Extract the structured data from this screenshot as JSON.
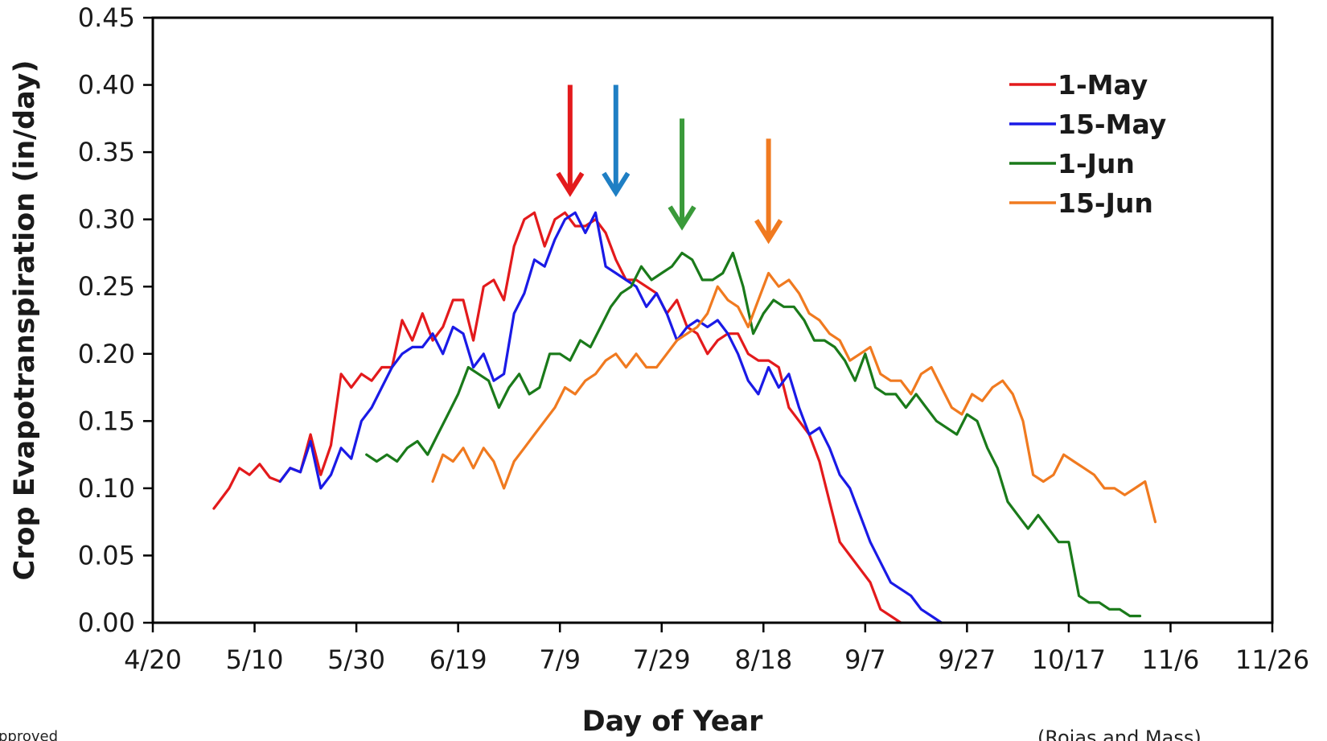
{
  "chart_data": {
    "type": "line",
    "title": "",
    "xlabel": "Day of Year",
    "ylabel": "Crop Evapotranspiration (in/day)",
    "xlim": [
      "4/20",
      "11/26"
    ],
    "ylim": [
      0,
      0.45
    ],
    "x_ticks": [
      "4/20",
      "5/10",
      "5/30",
      "6/19",
      "7/9",
      "7/29",
      "8/18",
      "9/7",
      "9/27",
      "10/17",
      "11/6",
      "11/26"
    ],
    "y_ticks": [
      "0.00",
      "0.05",
      "0.10",
      "0.15",
      "0.20",
      "0.25",
      "0.30",
      "0.35",
      "0.40",
      "0.45"
    ],
    "grid": false,
    "legend_position": "top-right",
    "series": [
      {
        "name": "1-May",
        "color": "#e31a1c",
        "x": [
          "5/2",
          "5/3",
          "5/5",
          "5/7",
          "5/9",
          "5/11",
          "5/13",
          "5/15",
          "5/17",
          "5/19",
          "5/21",
          "5/23",
          "5/25",
          "5/27",
          "5/29",
          "5/31",
          "6/2",
          "6/4",
          "6/6",
          "6/8",
          "6/10",
          "6/12",
          "6/14",
          "6/16",
          "6/18",
          "6/20",
          "6/22",
          "6/24",
          "6/26",
          "6/28",
          "6/30",
          "7/2",
          "7/4",
          "7/6",
          "7/8",
          "7/10",
          "7/12",
          "7/14",
          "7/16",
          "7/18",
          "7/20",
          "7/22",
          "7/24",
          "7/26",
          "7/28",
          "7/30",
          "8/1",
          "8/3",
          "8/5",
          "8/7",
          "8/9",
          "8/11",
          "8/13",
          "8/15",
          "8/17",
          "8/19",
          "8/21",
          "8/23",
          "8/25",
          "8/27",
          "8/29",
          "8/31",
          "9/2",
          "9/4",
          "9/6",
          "9/8",
          "9/10",
          "9/12",
          "9/14",
          "9/16",
          "9/18",
          "9/20",
          "9/22"
        ],
        "y": [
          0.085,
          0.09,
          0.1,
          0.115,
          0.11,
          0.118,
          0.108,
          0.105,
          0.115,
          0.112,
          0.14,
          0.11,
          0.132,
          0.185,
          0.175,
          0.185,
          0.18,
          0.19,
          0.19,
          0.225,
          0.21,
          0.23,
          0.21,
          0.22,
          0.24,
          0.24,
          0.21,
          0.25,
          0.255,
          0.24,
          0.28,
          0.3,
          0.305,
          0.28,
          0.3,
          0.305,
          0.295,
          0.295,
          0.3,
          0.29,
          0.27,
          0.255,
          0.255,
          0.25,
          0.245,
          0.23,
          0.24,
          0.22,
          0.215,
          0.2,
          0.21,
          0.215,
          0.215,
          0.2,
          0.195,
          0.195,
          0.19,
          0.16,
          0.15,
          0.14,
          0.12,
          0.09,
          0.06,
          0.05,
          0.04,
          0.03,
          0.01,
          0.005,
          0.0,
          null,
          null,
          null,
          null
        ]
      },
      {
        "name": "15-May",
        "color": "#1a1ae6",
        "x": [
          "5/15",
          "5/17",
          "5/19",
          "5/21",
          "5/23",
          "5/25",
          "5/27",
          "5/29",
          "5/31",
          "6/2",
          "6/4",
          "6/6",
          "6/8",
          "6/10",
          "6/12",
          "6/14",
          "6/16",
          "6/18",
          "6/20",
          "6/22",
          "6/24",
          "6/26",
          "6/28",
          "6/30",
          "7/2",
          "7/4",
          "7/6",
          "7/8",
          "7/10",
          "7/12",
          "7/14",
          "7/16",
          "7/18",
          "7/20",
          "7/22",
          "7/24",
          "7/26",
          "7/28",
          "7/30",
          "8/1",
          "8/3",
          "8/5",
          "8/7",
          "8/9",
          "8/11",
          "8/13",
          "8/15",
          "8/17",
          "8/19",
          "8/21",
          "8/23",
          "8/25",
          "8/27",
          "8/29",
          "8/31",
          "9/2",
          "9/4",
          "9/6",
          "9/8",
          "9/10",
          "9/12",
          "9/14",
          "9/16",
          "9/18",
          "9/20",
          "9/22",
          "9/24",
          "9/26",
          "9/28",
          "9/30",
          "10/2",
          "10/4",
          "10/6"
        ],
        "y": [
          0.105,
          0.115,
          0.112,
          0.135,
          0.1,
          0.11,
          0.13,
          0.122,
          0.15,
          0.16,
          0.175,
          0.19,
          0.2,
          0.205,
          0.205,
          0.215,
          0.2,
          0.22,
          0.215,
          0.19,
          0.2,
          0.18,
          0.185,
          0.23,
          0.245,
          0.27,
          0.265,
          0.285,
          0.3,
          0.305,
          0.29,
          0.305,
          0.265,
          0.26,
          0.255,
          0.25,
          0.235,
          0.245,
          0.23,
          0.21,
          0.22,
          0.225,
          0.22,
          0.225,
          0.215,
          0.2,
          0.18,
          0.17,
          0.19,
          0.175,
          0.185,
          0.16,
          0.14,
          0.145,
          0.13,
          0.11,
          0.1,
          0.08,
          0.06,
          0.045,
          0.03,
          0.025,
          0.02,
          0.01,
          0.005,
          0.0,
          null,
          null,
          null,
          null,
          null,
          null,
          null
        ]
      },
      {
        "name": "1-Jun",
        "color": "#1a7a1a",
        "x": [
          "6/1",
          "6/3",
          "6/5",
          "6/7",
          "6/9",
          "6/11",
          "6/13",
          "6/15",
          "6/17",
          "6/19",
          "6/21",
          "6/23",
          "6/25",
          "6/27",
          "6/29",
          "7/1",
          "7/3",
          "7/5",
          "7/7",
          "7/9",
          "7/11",
          "7/13",
          "7/15",
          "7/17",
          "7/19",
          "7/21",
          "7/23",
          "7/25",
          "7/27",
          "7/29",
          "7/31",
          "8/2",
          "8/4",
          "8/6",
          "8/8",
          "8/10",
          "8/12",
          "8/14",
          "8/16",
          "8/18",
          "8/20",
          "8/22",
          "8/24",
          "8/26",
          "8/28",
          "8/30",
          "9/1",
          "9/3",
          "9/5",
          "9/7",
          "9/9",
          "9/11",
          "9/13",
          "9/15",
          "9/17",
          "9/19",
          "9/21",
          "9/23",
          "9/25",
          "9/27",
          "9/29",
          "10/1",
          "10/3",
          "10/5",
          "10/7",
          "10/9",
          "10/11",
          "10/13",
          "10/15",
          "10/17",
          "10/19",
          "10/21",
          "10/23",
          "10/25",
          "10/27",
          "10/29",
          "10/31"
        ],
        "y": [
          0.125,
          0.12,
          0.125,
          0.12,
          0.13,
          0.135,
          0.125,
          0.14,
          0.155,
          0.17,
          0.19,
          0.185,
          0.18,
          0.16,
          0.175,
          0.185,
          0.17,
          0.175,
          0.2,
          0.2,
          0.195,
          0.21,
          0.205,
          0.22,
          0.235,
          0.245,
          0.25,
          0.265,
          0.255,
          0.26,
          0.265,
          0.275,
          0.27,
          0.255,
          0.255,
          0.26,
          0.275,
          0.25,
          0.215,
          0.23,
          0.24,
          0.235,
          0.235,
          0.225,
          0.21,
          0.21,
          0.205,
          0.195,
          0.18,
          0.2,
          0.175,
          0.17,
          0.17,
          0.16,
          0.17,
          0.16,
          0.15,
          0.145,
          0.14,
          0.155,
          0.15,
          0.13,
          0.115,
          0.09,
          0.08,
          0.07,
          0.08,
          0.07,
          0.06,
          0.06,
          0.02,
          0.015,
          0.015,
          0.01,
          0.01,
          0.005,
          0.005
        ]
      },
      {
        "name": "15-Jun",
        "color": "#f07a20",
        "x": [
          "6/14",
          "6/16",
          "6/18",
          "6/20",
          "6/22",
          "6/24",
          "6/26",
          "6/28",
          "6/30",
          "7/2",
          "7/4",
          "7/6",
          "7/8",
          "7/10",
          "7/12",
          "7/14",
          "7/16",
          "7/18",
          "7/20",
          "7/22",
          "7/24",
          "7/26",
          "7/28",
          "7/30",
          "8/1",
          "8/3",
          "8/5",
          "8/7",
          "8/9",
          "8/11",
          "8/13",
          "8/15",
          "8/17",
          "8/19",
          "8/21",
          "8/23",
          "8/25",
          "8/27",
          "8/29",
          "8/31",
          "9/2",
          "9/4",
          "9/6",
          "9/8",
          "9/10",
          "9/12",
          "9/14",
          "9/16",
          "9/18",
          "9/20",
          "9/22",
          "9/24",
          "9/26",
          "9/28",
          "9/30",
          "10/2",
          "10/4",
          "10/6",
          "10/8",
          "10/10",
          "10/12",
          "10/14",
          "10/16",
          "10/18",
          "10/20",
          "10/22",
          "10/24",
          "10/26",
          "10/28",
          "10/30",
          "11/1",
          "11/3"
        ],
        "y": [
          0.105,
          0.125,
          0.12,
          0.13,
          0.115,
          0.13,
          0.12,
          0.1,
          0.12,
          0.13,
          0.14,
          0.15,
          0.16,
          0.175,
          0.17,
          0.18,
          0.185,
          0.195,
          0.2,
          0.19,
          0.2,
          0.19,
          0.19,
          0.2,
          0.21,
          0.215,
          0.22,
          0.23,
          0.25,
          0.24,
          0.235,
          0.22,
          0.24,
          0.26,
          0.25,
          0.255,
          0.245,
          0.23,
          0.225,
          0.215,
          0.21,
          0.195,
          0.2,
          0.205,
          0.185,
          0.18,
          0.18,
          0.17,
          0.185,
          0.19,
          0.175,
          0.16,
          0.155,
          0.17,
          0.165,
          0.175,
          0.18,
          0.17,
          0.15,
          0.11,
          0.105,
          0.11,
          0.125,
          0.12,
          0.115,
          0.11,
          0.1,
          0.1,
          0.095,
          0.1,
          0.105,
          0.075
        ]
      }
    ],
    "annotations": [
      {
        "type": "arrow",
        "x": "7/11",
        "color": "#e31a1c"
      },
      {
        "type": "arrow",
        "x": "7/20",
        "color": "#1f7fc4"
      },
      {
        "type": "arrow",
        "x": "8/2",
        "color": "#3a9a3a"
      },
      {
        "type": "arrow",
        "x": "8/19",
        "color": "#f07a20"
      }
    ]
  },
  "footer": {
    "left_text": "pproved",
    "right_text": "(Rojas and Mass)"
  }
}
